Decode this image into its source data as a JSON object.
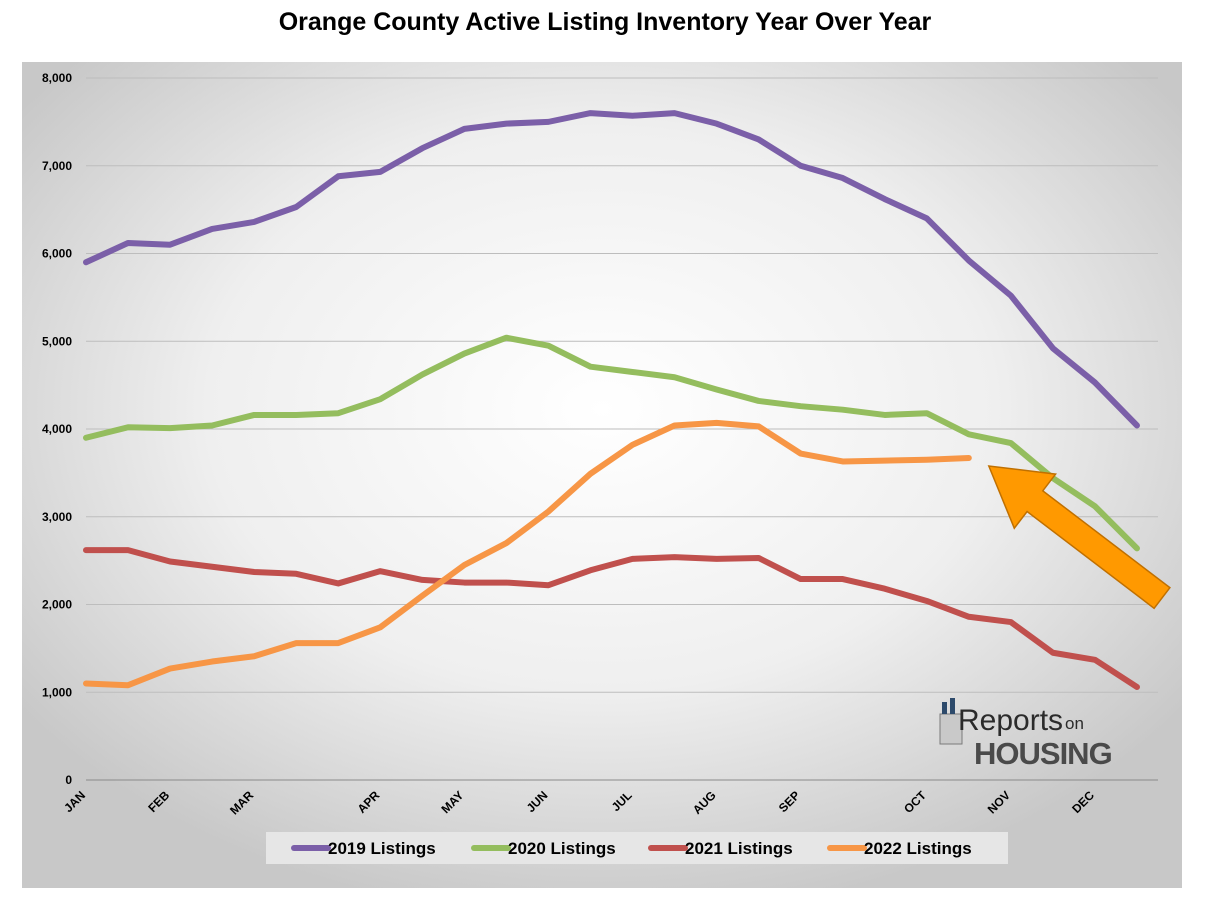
{
  "chart_data": {
    "type": "line",
    "title": "Orange County Active Listing Inventory Year Over Year",
    "xlabel": "",
    "ylabel": "",
    "ylim": [
      0,
      8000
    ],
    "yticks": [
      0,
      1000,
      2000,
      3000,
      4000,
      5000,
      6000,
      7000,
      8000
    ],
    "ytick_labels": [
      "0",
      "1,000",
      "2,000",
      "3,000",
      "4,000",
      "5,000",
      "6,000",
      "7,000",
      "8,000"
    ],
    "x_points": 52,
    "month_labels": [
      {
        "label": "JAN",
        "week": 0
      },
      {
        "label": "FEB",
        "week": 4
      },
      {
        "label": "MAR",
        "week": 8
      },
      {
        "label": "APR",
        "week": 14
      },
      {
        "label": "MAY",
        "week": 18
      },
      {
        "label": "JUN",
        "week": 22
      },
      {
        "label": "JUL",
        "week": 26
      },
      {
        "label": "AUG",
        "week": 30
      },
      {
        "label": "SEP",
        "week": 34
      },
      {
        "label": "OCT",
        "week": 40
      },
      {
        "label": "NOV",
        "week": 44
      },
      {
        "label": "DEC",
        "week": 48
      }
    ],
    "legend_position": "bottom",
    "grid": true,
    "series": [
      {
        "name": "2019 Listings",
        "color": "#7b5fa8",
        "values": [
          5900,
          6120,
          6100,
          6280,
          6360,
          6530,
          6880,
          6930,
          7200,
          7420,
          7480,
          7500,
          7600,
          7570,
          7600,
          7480,
          7300,
          7000,
          6860,
          6620,
          6400,
          5920,
          5520,
          4920,
          4530,
          4040
        ]
      },
      {
        "name": "2020 Listings",
        "color": "#94bd5e",
        "values": [
          3900,
          4020,
          4010,
          4040,
          4160,
          4160,
          4180,
          4340,
          4620,
          4860,
          5040,
          4950,
          4710,
          4650,
          4590,
          4450,
          4320,
          4260,
          4220,
          4160,
          4180,
          3940,
          3840,
          3440,
          3120,
          2640
        ]
      },
      {
        "name": "2021 Listings",
        "color": "#c0504d",
        "values": [
          2620,
          2620,
          2490,
          2430,
          2370,
          2350,
          2240,
          2380,
          2280,
          2250,
          2250,
          2220,
          2390,
          2520,
          2540,
          2520,
          2530,
          2290,
          2290,
          2180,
          2040,
          1860,
          1800,
          1450,
          1370,
          1060
        ]
      },
      {
        "name": "2022 Listings",
        "color": "#f79646",
        "values": [
          1100,
          1080,
          1270,
          1350,
          1410,
          1560,
          1560,
          1740,
          2100,
          2450,
          2700,
          3060,
          3490,
          3820,
          4040,
          4070,
          4030,
          3720,
          3630,
          3640,
          3650,
          3670
        ]
      }
    ],
    "annotations": [
      {
        "type": "arrow",
        "color": "#ff9900",
        "points_to": "2022 Listings latest value"
      }
    ]
  },
  "logo": {
    "line1": "Reports",
    "line1_suffix": "on",
    "line2": "HOUSING"
  }
}
